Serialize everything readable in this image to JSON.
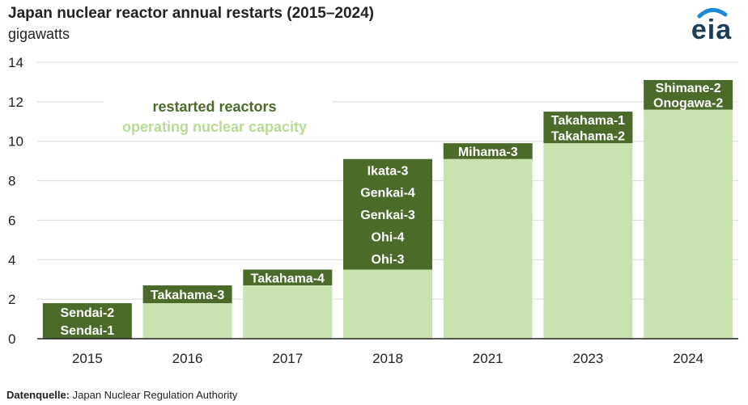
{
  "colors": {
    "capacity": "#c8e3b0",
    "restarted": "#4a6b2a",
    "grid": "#d9d9d9",
    "axis": "#222222"
  },
  "source": {
    "label": "Datenquelle:",
    "text": "Japan Nuclear Regulation Authority"
  },
  "logo": {
    "text": "eia"
  },
  "chart_data": {
    "type": "bar",
    "stacked": true,
    "title": "Japan nuclear reactor annual restarts (2015–2024)",
    "subtitle": "gigawatts",
    "ylim": [
      0,
      14
    ],
    "yticks": [
      "0",
      "2",
      "4",
      "6",
      "8",
      "10",
      "12",
      "14"
    ],
    "grid": true,
    "legend": {
      "placement": "top-left",
      "entries": [
        "restarted reactors",
        "operating nuclear capacity"
      ]
    },
    "categories": [
      "2015",
      "2016",
      "2017",
      "2018",
      "2021",
      "2023",
      "2024"
    ],
    "series": [
      {
        "name": "operating nuclear capacity",
        "values": [
          0,
          1.8,
          2.7,
          3.5,
          9.1,
          9.9,
          11.6
        ]
      },
      {
        "name": "restarted reactors",
        "values": [
          1.8,
          0.9,
          0.8,
          5.6,
          0.8,
          1.6,
          1.5
        ],
        "reactors": [
          [
            "Sendai-1",
            "Sendai-2"
          ],
          [
            "Takahama-3"
          ],
          [
            "Takahama-4"
          ],
          [
            "Ohi-3",
            "Ohi-4",
            "Genkai-3",
            "Genkai-4",
            "Ikata-3"
          ],
          [
            "Mihama-3"
          ],
          [
            "Takahama-2",
            "Takahama-1"
          ],
          [
            "Onogawa-2",
            "Shimane-2"
          ]
        ]
      }
    ]
  }
}
